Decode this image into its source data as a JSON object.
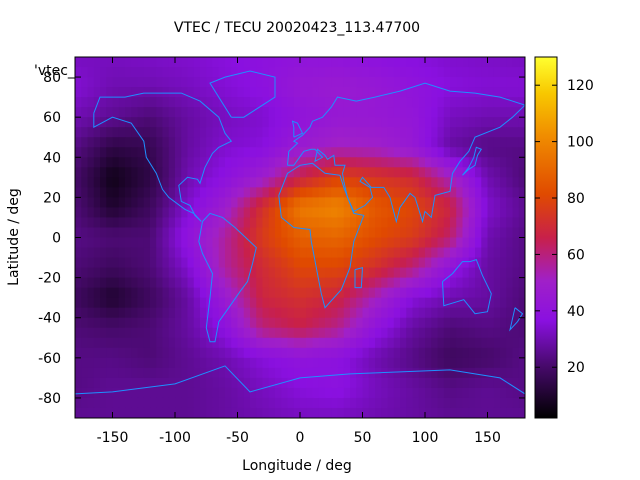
{
  "chart_data": {
    "type": "heatmap",
    "title": "VTEC / TECU 20020423_113.47700",
    "xlabel": "Longitude / deg",
    "ylabel": "Latitude / deg",
    "key_label": "'vtec_",
    "xlim": [
      -180,
      180
    ],
    "ylim": [
      -90,
      90
    ],
    "xticks": [
      -150,
      -100,
      -50,
      0,
      50,
      100,
      150
    ],
    "yticks": [
      -80,
      -60,
      -40,
      -20,
      0,
      20,
      40,
      60,
      80
    ],
    "colorbar": {
      "min": 2,
      "max": 130,
      "ticks": [
        20,
        40,
        60,
        80,
        100,
        120
      ]
    },
    "lons": [
      -180,
      -150,
      -120,
      -90,
      -60,
      -30,
      0,
      30,
      60,
      90,
      120,
      150,
      180
    ],
    "lats": [
      90,
      75,
      60,
      45,
      30,
      15,
      0,
      -15,
      -30,
      -45,
      -60,
      -75,
      -90
    ],
    "values": [
      [
        32,
        32,
        33,
        34,
        36,
        38,
        40,
        40,
        38,
        36,
        34,
        33,
        32
      ],
      [
        35,
        30,
        30,
        32,
        35,
        38,
        44,
        46,
        44,
        40,
        36,
        35,
        35
      ],
      [
        30,
        26,
        22,
        28,
        32,
        34,
        40,
        44,
        44,
        42,
        32,
        30,
        30
      ],
      [
        24,
        14,
        16,
        28,
        34,
        36,
        46,
        52,
        50,
        44,
        28,
        24,
        24
      ],
      [
        20,
        6,
        14,
        30,
        38,
        48,
        66,
        78,
        74,
        70,
        52,
        30,
        22
      ],
      [
        22,
        10,
        18,
        34,
        48,
        72,
        96,
        100,
        86,
        80,
        68,
        34,
        26
      ],
      [
        24,
        22,
        22,
        40,
        56,
        76,
        88,
        90,
        82,
        76,
        62,
        30,
        24
      ],
      [
        22,
        18,
        22,
        34,
        56,
        70,
        80,
        80,
        72,
        60,
        40,
        28,
        24
      ],
      [
        18,
        10,
        18,
        28,
        46,
        68,
        72,
        68,
        52,
        36,
        30,
        28,
        22
      ],
      [
        22,
        20,
        22,
        28,
        38,
        60,
        66,
        58,
        40,
        28,
        22,
        24,
        22
      ],
      [
        24,
        24,
        22,
        26,
        30,
        36,
        40,
        38,
        30,
        24,
        18,
        20,
        24
      ],
      [
        24,
        26,
        26,
        26,
        28,
        32,
        36,
        38,
        32,
        28,
        24,
        26,
        24
      ],
      [
        26,
        26,
        26,
        26,
        28,
        30,
        32,
        32,
        30,
        28,
        26,
        26,
        26
      ]
    ]
  },
  "coastline": {
    "color": "#1e90ff",
    "north_america": [
      [
        -165,
        62
      ],
      [
        -160,
        70
      ],
      [
        -140,
        70
      ],
      [
        -125,
        72
      ],
      [
        -95,
        72
      ],
      [
        -80,
        68
      ],
      [
        -65,
        60
      ],
      [
        -60,
        52
      ],
      [
        -55,
        48
      ],
      [
        -65,
        45
      ],
      [
        -70,
        42
      ],
      [
        -76,
        35
      ],
      [
        -80,
        27
      ],
      [
        -82,
        29
      ],
      [
        -90,
        30
      ],
      [
        -97,
        26
      ],
      [
        -95,
        18
      ],
      [
        -88,
        16
      ],
      [
        -84,
        11
      ],
      [
        -79,
        8
      ],
      [
        -85,
        12
      ],
      [
        -92,
        14
      ],
      [
        -105,
        20
      ],
      [
        -110,
        24
      ],
      [
        -115,
        32
      ],
      [
        -123,
        40
      ],
      [
        -125,
        48
      ],
      [
        -135,
        57
      ],
      [
        -150,
        60
      ],
      [
        -165,
        55
      ],
      [
        -165,
        62
      ]
    ],
    "south_america": [
      [
        -78,
        8
      ],
      [
        -72,
        12
      ],
      [
        -62,
        10
      ],
      [
        -52,
        5
      ],
      [
        -35,
        -5
      ],
      [
        -38,
        -13
      ],
      [
        -42,
        -22
      ],
      [
        -48,
        -27
      ],
      [
        -57,
        -35
      ],
      [
        -65,
        -42
      ],
      [
        -68,
        -52
      ],
      [
        -72,
        -52
      ],
      [
        -75,
        -45
      ],
      [
        -72,
        -30
      ],
      [
        -70,
        -18
      ],
      [
        -78,
        -8
      ],
      [
        -81,
        -2
      ],
      [
        -78,
        8
      ]
    ],
    "africa": [
      [
        -17,
        21
      ],
      [
        -10,
        32
      ],
      [
        0,
        36
      ],
      [
        10,
        37
      ],
      [
        20,
        32
      ],
      [
        32,
        31
      ],
      [
        35,
        25
      ],
      [
        43,
        12
      ],
      [
        51,
        11
      ],
      [
        43,
        -2
      ],
      [
        40,
        -15
      ],
      [
        33,
        -26
      ],
      [
        20,
        -35
      ],
      [
        17,
        -28
      ],
      [
        13,
        -15
      ],
      [
        9,
        -2
      ],
      [
        8,
        4
      ],
      [
        -5,
        5
      ],
      [
        -15,
        10
      ],
      [
        -17,
        21
      ]
    ],
    "eurasia": [
      [
        -10,
        36
      ],
      [
        -9,
        43
      ],
      [
        -2,
        47
      ],
      [
        -5,
        48
      ],
      [
        2,
        51
      ],
      [
        8,
        55
      ],
      [
        10,
        58
      ],
      [
        18,
        60
      ],
      [
        25,
        65
      ],
      [
        30,
        70
      ],
      [
        45,
        68
      ],
      [
        60,
        70
      ],
      [
        80,
        73
      ],
      [
        100,
        77
      ],
      [
        120,
        73
      ],
      [
        140,
        72
      ],
      [
        160,
        70
      ],
      [
        180,
        66
      ],
      [
        170,
        60
      ],
      [
        160,
        55
      ],
      [
        140,
        50
      ],
      [
        135,
        43
      ],
      [
        128,
        38
      ],
      [
        122,
        32
      ],
      [
        120,
        23
      ],
      [
        108,
        21
      ],
      [
        105,
        10
      ],
      [
        100,
        13
      ],
      [
        98,
        8
      ],
      [
        92,
        20
      ],
      [
        88,
        22
      ],
      [
        80,
        15
      ],
      [
        77,
        8
      ],
      [
        72,
        20
      ],
      [
        67,
        25
      ],
      [
        57,
        25
      ],
      [
        50,
        30
      ],
      [
        48,
        28
      ],
      [
        56,
        25
      ],
      [
        58,
        20
      ],
      [
        52,
        16
      ],
      [
        43,
        13
      ],
      [
        38,
        20
      ],
      [
        35,
        28
      ],
      [
        34,
        32
      ],
      [
        36,
        36
      ],
      [
        28,
        36
      ],
      [
        27,
        41
      ],
      [
        22,
        39
      ],
      [
        20,
        41
      ],
      [
        14,
        44
      ],
      [
        12,
        38
      ],
      [
        18,
        40
      ],
      [
        12,
        44
      ],
      [
        9,
        44
      ],
      [
        3,
        43
      ],
      [
        -5,
        36
      ],
      [
        -10,
        36
      ]
    ],
    "australia": [
      [
        114,
        -22
      ],
      [
        122,
        -18
      ],
      [
        130,
        -12
      ],
      [
        136,
        -12
      ],
      [
        141,
        -11
      ],
      [
        146,
        -19
      ],
      [
        153,
        -28
      ],
      [
        150,
        -37
      ],
      [
        140,
        -38
      ],
      [
        131,
        -31
      ],
      [
        115,
        -34
      ],
      [
        114,
        -22
      ]
    ],
    "antarctica": [
      [
        -180,
        -78
      ],
      [
        -150,
        -77
      ],
      [
        -100,
        -73
      ],
      [
        -60,
        -64
      ],
      [
        -40,
        -77
      ],
      [
        0,
        -70
      ],
      [
        40,
        -68
      ],
      [
        80,
        -67
      ],
      [
        120,
        -66
      ],
      [
        160,
        -70
      ],
      [
        180,
        -78
      ]
    ],
    "greenland": [
      [
        -55,
        60
      ],
      [
        -45,
        60
      ],
      [
        -20,
        70
      ],
      [
        -20,
        80
      ],
      [
        -40,
        83
      ],
      [
        -60,
        80
      ],
      [
        -72,
        77
      ],
      [
        -55,
        60
      ]
    ],
    "uk": [
      [
        -5,
        50
      ],
      [
        2,
        52
      ],
      [
        -2,
        57
      ],
      [
        -6,
        58
      ],
      [
        -5,
        55
      ],
      [
        -5,
        50
      ]
    ],
    "japan": [
      [
        130,
        31
      ],
      [
        135,
        34
      ],
      [
        140,
        36
      ],
      [
        142,
        41
      ],
      [
        145,
        44
      ],
      [
        141,
        45
      ],
      [
        139,
        40
      ],
      [
        135,
        35
      ],
      [
        130,
        31
      ]
    ],
    "madagascar": [
      [
        44,
        -16
      ],
      [
        50,
        -15
      ],
      [
        49,
        -25
      ],
      [
        44,
        -25
      ],
      [
        44,
        -16
      ]
    ],
    "new_zealand": [
      [
        172,
        -35
      ],
      [
        178,
        -38
      ],
      [
        174,
        -42
      ],
      [
        168,
        -46
      ],
      [
        172,
        -35
      ]
    ]
  }
}
